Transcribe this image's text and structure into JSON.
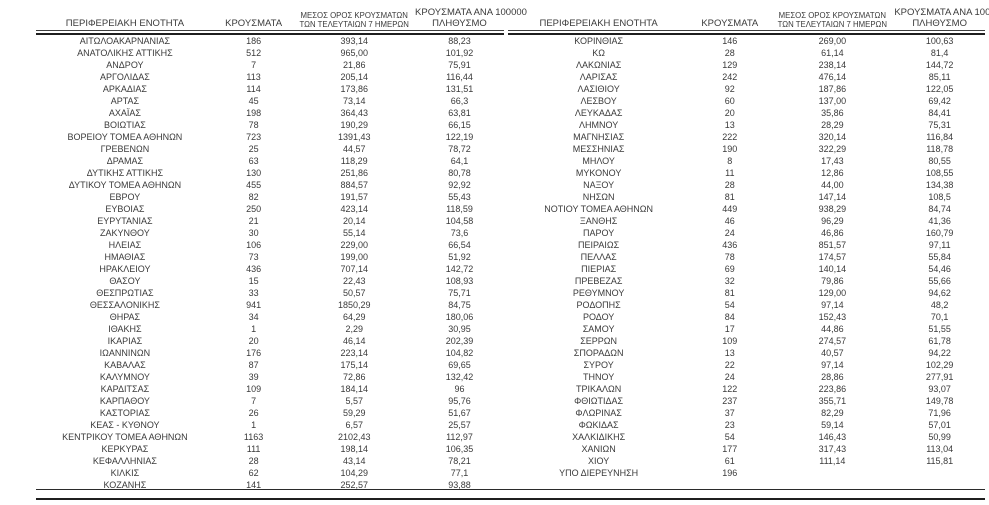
{
  "page": {
    "background_color": "#ffffff",
    "text_color": "#3a3a3a",
    "rule_color": "#1f1f1f"
  },
  "headers": {
    "region": "ΠΕΡΙΦΕΡΕΙΑΚΗ ΕΝΟΤΗΤΑ",
    "cases": "ΚΡΟΥΣΜΑΤΑ",
    "avg7_line1": "ΜΕΣΟΣ ΟΡΟΣ ΚΡΟΥΣΜΑΤΩΝ",
    "avg7_line2": "ΤΩΝ ΤΕΛΕΥΤΑΙΩΝ 7 ΗΜΕΡΩΝ",
    "per100k_line1": "ΚΡΟΥΣΜΑΤΑ ΑΝΑ 100000",
    "per100k_line2": "ΠΛΗΘΥΣΜΟ"
  },
  "left_rows": [
    [
      "ΑΙΤΩΛΟΑΚΑΡΝΑΝΙΑΣ",
      "186",
      "393,14",
      "88,23"
    ],
    [
      "ΑΝΑΤΟΛΙΚΗΣ ΑΤΤΙΚΗΣ",
      "512",
      "965,00",
      "101,92"
    ],
    [
      "ΑΝΔΡΟΥ",
      "7",
      "21,86",
      "75,91"
    ],
    [
      "ΑΡΓΟΛΙΔΑΣ",
      "113",
      "205,14",
      "116,44"
    ],
    [
      "ΑΡΚΑΔΙΑΣ",
      "114",
      "173,86",
      "131,51"
    ],
    [
      "ΑΡΤΑΣ",
      "45",
      "73,14",
      "66,3"
    ],
    [
      "ΑΧΑΪΑΣ",
      "198",
      "364,43",
      "63,81"
    ],
    [
      "ΒΟΙΩΤΙΑΣ",
      "78",
      "190,29",
      "66,15"
    ],
    [
      "ΒΟΡΕΙΟΥ ΤΟΜΕΑ ΑΘΗΝΩΝ",
      "723",
      "1391,43",
      "122,19"
    ],
    [
      "ΓΡΕΒΕΝΩΝ",
      "25",
      "44,57",
      "78,72"
    ],
    [
      "ΔΡΑΜΑΣ",
      "63",
      "118,29",
      "64,1"
    ],
    [
      "ΔΥΤΙΚΗΣ ΑΤΤΙΚΗΣ",
      "130",
      "251,86",
      "80,78"
    ],
    [
      "ΔΥΤΙΚΟΥ ΤΟΜΕΑ ΑΘΗΝΩΝ",
      "455",
      "884,57",
      "92,92"
    ],
    [
      "ΕΒΡΟΥ",
      "82",
      "191,57",
      "55,43"
    ],
    [
      "ΕΥΒΟΙΑΣ",
      "250",
      "423,14",
      "118,59"
    ],
    [
      "ΕΥΡΥΤΑΝΙΑΣ",
      "21",
      "20,14",
      "104,58"
    ],
    [
      "ΖΑΚΥΝΘΟΥ",
      "30",
      "55,14",
      "73,6"
    ],
    [
      "ΗΛΕΙΑΣ",
      "106",
      "229,00",
      "66,54"
    ],
    [
      "ΗΜΑΘΙΑΣ",
      "73",
      "199,00",
      "51,92"
    ],
    [
      "ΗΡΑΚΛΕΙΟΥ",
      "436",
      "707,14",
      "142,72"
    ],
    [
      "ΘΑΣΟΥ",
      "15",
      "22,43",
      "108,93"
    ],
    [
      "ΘΕΣΠΡΩΤΙΑΣ",
      "33",
      "50,57",
      "75,71"
    ],
    [
      "ΘΕΣΣΑΛΟΝΙΚΗΣ",
      "941",
      "1850,29",
      "84,75"
    ],
    [
      "ΘΗΡΑΣ",
      "34",
      "64,29",
      "180,06"
    ],
    [
      "ΙΘΑΚΗΣ",
      "1",
      "2,29",
      "30,95"
    ],
    [
      "ΙΚΑΡΙΑΣ",
      "20",
      "46,14",
      "202,39"
    ],
    [
      "ΙΩΑΝΝΙΝΩΝ",
      "176",
      "223,14",
      "104,82"
    ],
    [
      "ΚΑΒΑΛΑΣ",
      "87",
      "175,14",
      "69,65"
    ],
    [
      "ΚΑΛΥΜΝΟΥ",
      "39",
      "72,86",
      "132,42"
    ],
    [
      "ΚΑΡΔΙΤΣΑΣ",
      "109",
      "184,14",
      "96"
    ],
    [
      "ΚΑΡΠΑΘΟΥ",
      "7",
      "5,57",
      "95,76"
    ],
    [
      "ΚΑΣΤΟΡΙΑΣ",
      "26",
      "59,29",
      "51,67"
    ],
    [
      "ΚΕΑΣ - ΚΥΘΝΟΥ",
      "1",
      "6,57",
      "25,57"
    ],
    [
      "ΚΕΝΤΡΙΚΟΥ ΤΟΜΕΑ ΑΘΗΝΩΝ",
      "1163",
      "2102,43",
      "112,97"
    ],
    [
      "ΚΕΡΚΥΡΑΣ",
      "111",
      "198,14",
      "106,35"
    ],
    [
      "ΚΕΦΑΛΛΗΝΙΑΣ",
      "28",
      "43,14",
      "78,21"
    ],
    [
      "ΚΙΛΚΙΣ",
      "62",
      "104,29",
      "77,1"
    ],
    [
      "ΚΟΖΑΝΗΣ",
      "141",
      "252,57",
      "93,88"
    ]
  ],
  "right_rows": [
    [
      "ΚΟΡΙΝΘΙΑΣ",
      "146",
      "269,00",
      "100,63"
    ],
    [
      "ΚΩ",
      "28",
      "61,14",
      "81,4"
    ],
    [
      "ΛΑΚΩΝΙΑΣ",
      "129",
      "238,14",
      "144,72"
    ],
    [
      "ΛΑΡΙΣΑΣ",
      "242",
      "476,14",
      "85,11"
    ],
    [
      "ΛΑΣΙΘΙΟΥ",
      "92",
      "187,86",
      "122,05"
    ],
    [
      "ΛΕΣΒΟΥ",
      "60",
      "137,00",
      "69,42"
    ],
    [
      "ΛΕΥΚΑΔΑΣ",
      "20",
      "35,86",
      "84,41"
    ],
    [
      "ΛΗΜΝΟΥ",
      "13",
      "28,29",
      "75,31"
    ],
    [
      "ΜΑΓΝΗΣΙΑΣ",
      "222",
      "320,14",
      "116,84"
    ],
    [
      "ΜΕΣΣΗΝΙΑΣ",
      "190",
      "322,29",
      "118,78"
    ],
    [
      "ΜΗΛΟΥ",
      "8",
      "17,43",
      "80,55"
    ],
    [
      "ΜΥΚΟΝΟΥ",
      "11",
      "12,86",
      "108,55"
    ],
    [
      "ΝΑΞΟΥ",
      "28",
      "44,00",
      "134,38"
    ],
    [
      "ΝΗΣΩΝ",
      "81",
      "147,14",
      "108,5"
    ],
    [
      "ΝΟΤΙΟΥ ΤΟΜΕΑ ΑΘΗΝΩΝ",
      "449",
      "938,29",
      "84,74"
    ],
    [
      "ΞΑΝΘΗΣ",
      "46",
      "96,29",
      "41,36"
    ],
    [
      "ΠΑΡΟΥ",
      "24",
      "46,86",
      "160,79"
    ],
    [
      "ΠΕΙΡΑΙΩΣ",
      "436",
      "851,57",
      "97,11"
    ],
    [
      "ΠΕΛΛΑΣ",
      "78",
      "174,57",
      "55,84"
    ],
    [
      "ΠΙΕΡΙΑΣ",
      "69",
      "140,14",
      "54,46"
    ],
    [
      "ΠΡΕΒΕΖΑΣ",
      "32",
      "79,86",
      "55,66"
    ],
    [
      "ΡΕΘΥΜΝΟΥ",
      "81",
      "129,00",
      "94,62"
    ],
    [
      "ΡΟΔΟΠΗΣ",
      "54",
      "97,14",
      "48,2"
    ],
    [
      "ΡΟΔΟΥ",
      "84",
      "152,43",
      "70,1"
    ],
    [
      "ΣΑΜΟΥ",
      "17",
      "44,86",
      "51,55"
    ],
    [
      "ΣΕΡΡΩΝ",
      "109",
      "274,57",
      "61,78"
    ],
    [
      "ΣΠΟΡΑΔΩΝ",
      "13",
      "40,57",
      "94,22"
    ],
    [
      "ΣΥΡΟΥ",
      "22",
      "97,14",
      "102,29"
    ],
    [
      "ΤΗΝΟΥ",
      "24",
      "28,86",
      "277,91"
    ],
    [
      "ΤΡΙΚΑΛΩΝ",
      "122",
      "223,86",
      "93,07"
    ],
    [
      "ΦΘΙΩΤΙΔΑΣ",
      "237",
      "355,71",
      "149,78"
    ],
    [
      "ΦΛΩΡΙΝΑΣ",
      "37",
      "82,29",
      "71,96"
    ],
    [
      "ΦΩΚΙΔΑΣ",
      "23",
      "59,14",
      "57,01"
    ],
    [
      "ΧΑΛΚΙΔΙΚΗΣ",
      "54",
      "146,43",
      "50,99"
    ],
    [
      "ΧΑΝΙΩΝ",
      "177",
      "317,43",
      "113,04"
    ],
    [
      "ΧΙΟΥ",
      "61",
      "111,14",
      "115,81"
    ],
    [
      "ΥΠΟ ΔΙΕΡΕΥΝΗΣΗ",
      "196",
      "",
      ""
    ]
  ]
}
